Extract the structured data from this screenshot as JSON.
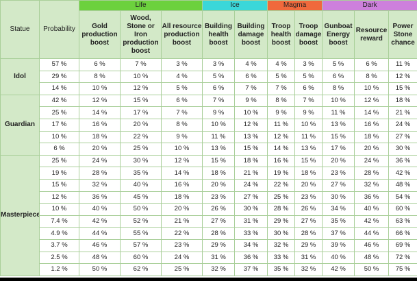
{
  "groups": [
    "Life",
    "Ice",
    "Magma",
    "Dark"
  ],
  "columns": [
    "Statue",
    "Probability",
    "Gold production boost",
    "Wood, Stone or Iron production boost",
    "All resource production boost",
    "Building health boost",
    "Building damage boost",
    "Troop health boost",
    "Troop damage boost",
    "Gunboat Energy boost",
    "Resource reward",
    "Power Stone chance"
  ],
  "statues": [
    {
      "name": "Idol",
      "rows": [
        [
          "57 %",
          "6 %",
          "7 %",
          "3 %",
          "3 %",
          "4 %",
          "4 %",
          "3 %",
          "5 %",
          "6 %",
          "11 %"
        ],
        [
          "29 %",
          "8 %",
          "10 %",
          "4 %",
          "5 %",
          "6 %",
          "5 %",
          "5 %",
          "6 %",
          "8 %",
          "12 %"
        ],
        [
          "14 %",
          "10 %",
          "12 %",
          "5 %",
          "6 %",
          "7 %",
          "7 %",
          "6 %",
          "8 %",
          "10 %",
          "15 %"
        ]
      ]
    },
    {
      "name": "Guardian",
      "rows": [
        [
          "42 %",
          "12 %",
          "15 %",
          "6 %",
          "7 %",
          "9 %",
          "8 %",
          "7 %",
          "10 %",
          "12 %",
          "18 %"
        ],
        [
          "25 %",
          "14 %",
          "17 %",
          "7 %",
          "9 %",
          "10 %",
          "9 %",
          "9 %",
          "11 %",
          "14 %",
          "21 %"
        ],
        [
          "17 %",
          "16 %",
          "20 %",
          "8 %",
          "10 %",
          "12 %",
          "11 %",
          "10 %",
          "13 %",
          "16 %",
          "24 %"
        ],
        [
          "10 %",
          "18 %",
          "22 %",
          "9 %",
          "11 %",
          "13 %",
          "12 %",
          "11 %",
          "15 %",
          "18 %",
          "27 %"
        ],
        [
          "6 %",
          "20 %",
          "25 %",
          "10 %",
          "13 %",
          "15 %",
          "14 %",
          "13 %",
          "17 %",
          "20 %",
          "30 %"
        ]
      ]
    },
    {
      "name": "Masterpiece",
      "rows": [
        [
          "25 %",
          "24 %",
          "30 %",
          "12 %",
          "15 %",
          "18 %",
          "16 %",
          "15 %",
          "20 %",
          "24 %",
          "36 %"
        ],
        [
          "19 %",
          "28 %",
          "35 %",
          "14 %",
          "18 %",
          "21 %",
          "19 %",
          "18 %",
          "23 %",
          "28 %",
          "42 %"
        ],
        [
          "15 %",
          "32 %",
          "40 %",
          "16 %",
          "20 %",
          "24 %",
          "22 %",
          "20 %",
          "27 %",
          "32 %",
          "48 %"
        ],
        [
          "12 %",
          "36 %",
          "45 %",
          "18 %",
          "23 %",
          "27 %",
          "25 %",
          "23 %",
          "30 %",
          "36 %",
          "54 %"
        ],
        [
          "10 %",
          "40 %",
          "50 %",
          "20 %",
          "26 %",
          "30 %",
          "28 %",
          "26 %",
          "34 %",
          "40 %",
          "60 %"
        ],
        [
          "7.4 %",
          "42 %",
          "52 %",
          "21 %",
          "27 %",
          "31 %",
          "29 %",
          "27 %",
          "35 %",
          "42 %",
          "63 %"
        ],
        [
          "4.9 %",
          "44 %",
          "55 %",
          "22 %",
          "28 %",
          "33 %",
          "30 %",
          "28 %",
          "37 %",
          "44 %",
          "66 %"
        ],
        [
          "3.7 %",
          "46 %",
          "57 %",
          "23 %",
          "29 %",
          "34 %",
          "32 %",
          "29 %",
          "39 %",
          "46 %",
          "69 %"
        ],
        [
          "2.5 %",
          "48 %",
          "60 %",
          "24 %",
          "31 %",
          "36 %",
          "33 %",
          "31 %",
          "40 %",
          "48 %",
          "72 %"
        ],
        [
          "1.2 %",
          "50 %",
          "62 %",
          "25 %",
          "32 %",
          "37 %",
          "35 %",
          "32 %",
          "42 %",
          "50 %",
          "75 %"
        ]
      ]
    }
  ]
}
